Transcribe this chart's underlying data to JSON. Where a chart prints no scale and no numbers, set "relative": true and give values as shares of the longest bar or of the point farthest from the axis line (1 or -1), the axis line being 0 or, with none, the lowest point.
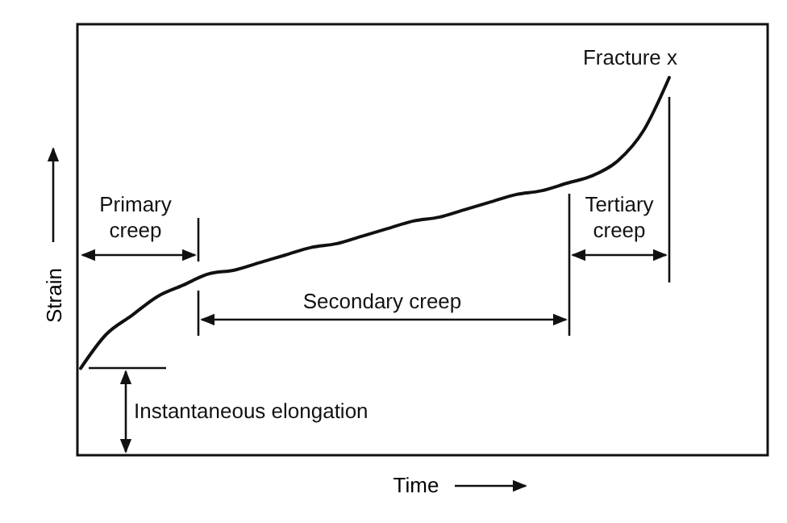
{
  "chart_data": {
    "type": "line",
    "relative": true,
    "xlabel": "Time",
    "ylabel": "Strain",
    "grid": false,
    "line_style": "solid",
    "categories": [
      null,
      null,
      null,
      null,
      null,
      null,
      null,
      null,
      null,
      null,
      null,
      null,
      null,
      null,
      null,
      null,
      null,
      null,
      null,
      null,
      null,
      null,
      null,
      null
    ],
    "series": [
      {
        "color": "#111111",
        "values": [
          0.23,
          0.32,
          0.37,
          0.42,
          0.45,
          0.48,
          0.49,
          0.51,
          0.53,
          0.55,
          0.56,
          0.58,
          0.6,
          0.62,
          0.63,
          0.65,
          0.67,
          0.69,
          0.7,
          0.72,
          0.74,
          0.78,
          0.86,
          1
        ]
      }
    ],
    "annotations": [
      "Primary creep",
      "Secondary creep",
      "Tertiary creep",
      "Fracture x",
      "Instantaneous elongation"
    ]
  }
}
